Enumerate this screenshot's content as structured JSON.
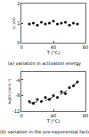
{
  "chart_data": [
    {
      "type": "scatter",
      "title": "(a) variation in activation energy",
      "x_label": "T (°C)",
      "y_label": "Eₐ (eV)",
      "x": [
        10,
        15,
        20,
        25,
        30,
        35,
        40,
        45,
        50,
        55,
        60,
        65,
        70
      ],
      "values": [
        0.95,
        1.0,
        0.9,
        1.05,
        0.95,
        1.0,
        1.1,
        0.95,
        1.0,
        1.05,
        0.9,
        1.0,
        0.95
      ],
      "xlim": [
        0,
        80
      ],
      "xticks": [
        0,
        40,
        80
      ],
      "ylim": [
        0,
        2
      ],
      "yticks": [
        0,
        1,
        2
      ],
      "color": "#000000",
      "marker": "circle",
      "grid": false
    },
    {
      "type": "scatter",
      "title": "(b) variation in the pre-exponential factor",
      "x_label": "T (°C)",
      "y_label": "log(D₀/cm²s⁻¹)",
      "series": [
        {
          "type": "scatter",
          "marker": "circle",
          "color": "#000000",
          "x": [
            10,
            15,
            20,
            25,
            30,
            35,
            40,
            45,
            50,
            55,
            60,
            65,
            70
          ],
          "values": [
            -9.5,
            -10,
            -9,
            -9.5,
            -8.5,
            -9,
            -8,
            -8.5,
            -7,
            -7.5,
            -6,
            -5.5,
            -4.5
          ]
        },
        {
          "type": "line",
          "line_style": "dash",
          "color": "#000000",
          "x": [
            10,
            30,
            50,
            60,
            70
          ],
          "values": [
            -10,
            -9.2,
            -7.6,
            -6.3,
            -4.6
          ]
        }
      ],
      "xlim": [
        0,
        80
      ],
      "xticks": [
        0,
        40,
        80
      ],
      "ylim": [
        -12,
        -2
      ],
      "yticks": [
        -12,
        -8,
        -4
      ],
      "grid": false
    }
  ]
}
